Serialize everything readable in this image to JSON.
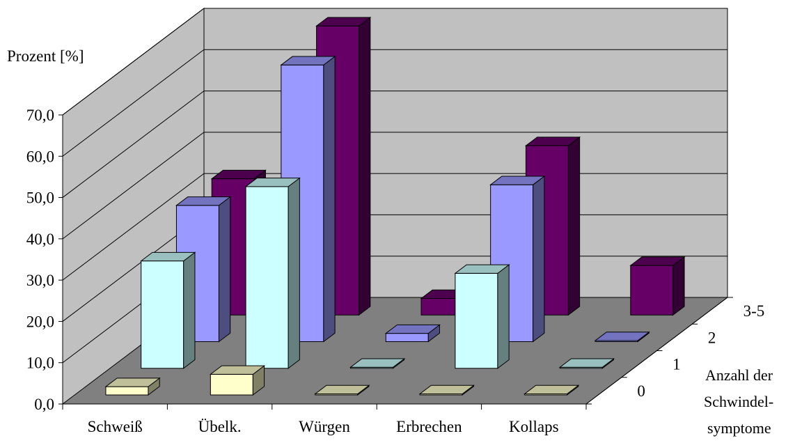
{
  "chart_data": {
    "type": "bar",
    "title": "",
    "ylabel": "Prozent [%]",
    "zlabel": [
      "Anzahl der",
      "Schwindel-",
      "symptome"
    ],
    "ylim": [
      0,
      70
    ],
    "yticks": [
      "0,0",
      "10,0",
      "20,0",
      "30,0",
      "40,0",
      "50,0",
      "60,0",
      "70,0"
    ],
    "categories": [
      "Schweiß",
      "Übelk.",
      "Würgen",
      "Erbrechen",
      "Kollaps"
    ],
    "series": [
      {
        "name": "0",
        "color": "#FFFFCC",
        "values": [
          2.0,
          5.0,
          0.0,
          0.0,
          0.0
        ]
      },
      {
        "name": "1",
        "color": "#CCFFFF",
        "values": [
          26.0,
          44.0,
          0.0,
          23.0,
          0.0
        ]
      },
      {
        "name": "2",
        "color": "#9999FF",
        "values": [
          33.0,
          67.0,
          2.0,
          38.0,
          0.0
        ]
      },
      {
        "name": "3-5",
        "color": "#660066",
        "values": [
          33.0,
          70.0,
          4.0,
          41.0,
          12.0
        ]
      }
    ],
    "grid": true,
    "legend": "none"
  }
}
